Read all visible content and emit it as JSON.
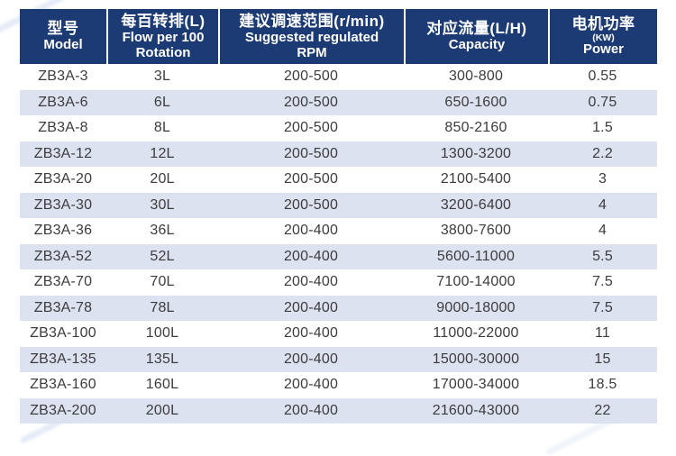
{
  "table": {
    "columns": [
      {
        "zh": "型号",
        "en1": "Model"
      },
      {
        "zh": "每百转排(L)",
        "en1": "Flow per 100",
        "en2": "Rotation"
      },
      {
        "zh": "建议调速范围(r/min)",
        "en1": "Suggested regulated",
        "en2": "RPM"
      },
      {
        "zh": "对应流量(L/H)",
        "en1": "Capacity"
      },
      {
        "zh": "电机功率",
        "kw": "(KW)",
        "en1": "Power"
      }
    ],
    "rows": [
      [
        "ZB3A-3",
        "3L",
        "200-500",
        "300-800",
        "0.55"
      ],
      [
        "ZB3A-6",
        "6L",
        "200-500",
        "650-1600",
        "0.75"
      ],
      [
        "ZB3A-8",
        "8L",
        "200-500",
        "850-2160",
        "1.5"
      ],
      [
        "ZB3A-12",
        "12L",
        "200-500",
        "1300-3200",
        "2.2"
      ],
      [
        "ZB3A-20",
        "20L",
        "200-500",
        "2100-5400",
        "3"
      ],
      [
        "ZB3A-30",
        "30L",
        "200-500",
        "3200-6400",
        "4"
      ],
      [
        "ZB3A-36",
        "36L",
        "200-400",
        "3800-7600",
        "4"
      ],
      [
        "ZB3A-52",
        "52L",
        "200-400",
        "5600-11000",
        "5.5"
      ],
      [
        "ZB3A-70",
        "70L",
        "200-400",
        "7100-14000",
        "7.5"
      ],
      [
        "ZB3A-78",
        "78L",
        "200-400",
        "9000-18000",
        "7.5"
      ],
      [
        "ZB3A-100",
        "100L",
        "200-400",
        "11000-22000",
        "11"
      ],
      [
        "ZB3A-135",
        "135L",
        "200-400",
        "15000-30000",
        "15"
      ],
      [
        "ZB3A-160",
        "160L",
        "200-400",
        "17000-34000",
        "18.5"
      ],
      [
        "ZB3A-200",
        "200L",
        "200-400",
        "21600-43000",
        "22"
      ]
    ]
  },
  "colors": {
    "header_bg": "#1c3b75",
    "header_text": "#ffffff",
    "stripe_bg": "#dde2f0",
    "body_text": "#3c3c3c",
    "page_bg": "#ffffff"
  }
}
